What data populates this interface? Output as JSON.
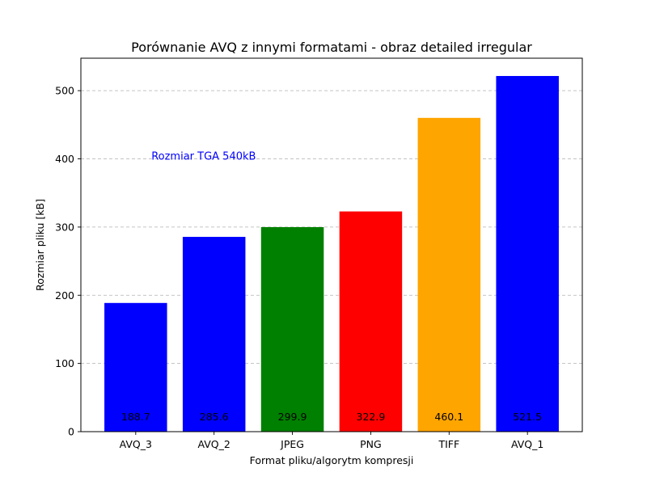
{
  "chart_data": {
    "type": "bar",
    "title": "Porównanie AVQ z innymi formatami - obraz detailed irregular",
    "xlabel": "Format pliku/algorytm kompresji",
    "ylabel": "Rozmiar pliku [kB]",
    "categories": [
      "AVQ_3",
      "AVQ_2",
      "JPEG",
      "PNG",
      "TIFF",
      "AVQ_1"
    ],
    "values": [
      188.7,
      285.6,
      299.9,
      322.9,
      460.1,
      521.5
    ],
    "value_labels": [
      "188.7",
      "285.6",
      "299.9",
      "322.9",
      "460.1",
      "521.5"
    ],
    "colors": [
      "#0000ff",
      "#0000ff",
      "#008000",
      "#ff0000",
      "#ffa500",
      "#0000ff"
    ],
    "ylim": [
      0,
      547.6
    ],
    "yticks": [
      0,
      100,
      200,
      300,
      400,
      500
    ],
    "ytick_labels": [
      "0",
      "100",
      "200",
      "300",
      "400",
      "500"
    ],
    "grid": true,
    "annotation": {
      "text": "Rozmiar TGA 540kB",
      "x_category": 0.8,
      "y_value": 404,
      "color": "#0000ff"
    },
    "data_label_y_value": 22
  }
}
